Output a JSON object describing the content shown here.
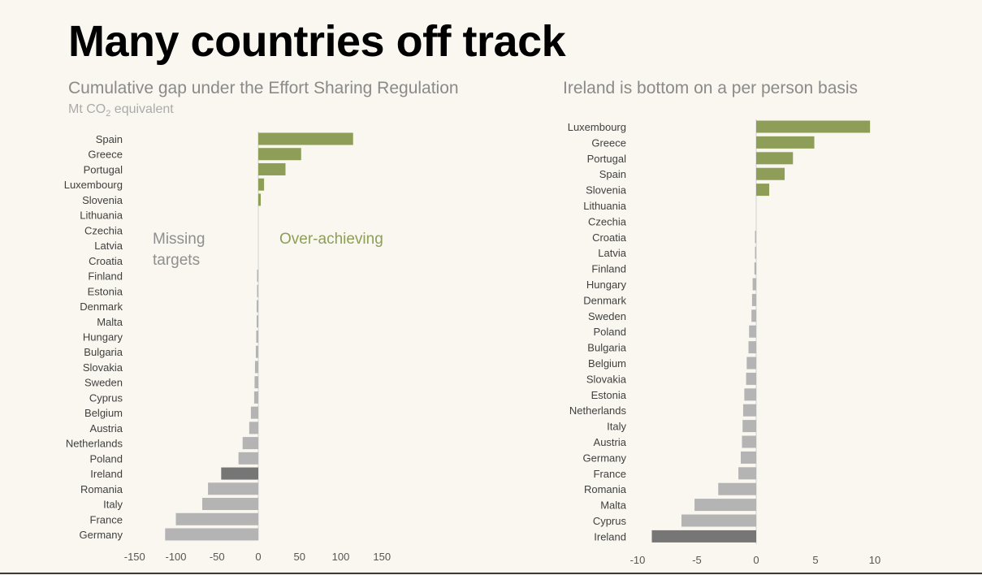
{
  "title": "Many countries off track",
  "unit": {
    "prefix": "Mt CO",
    "subscript": "2",
    "suffix": " equivalent"
  },
  "annotations": {
    "missing": "Missing targets",
    "over": "Over-achieving"
  },
  "colors": {
    "positive": "#8e9e58",
    "negative": "#b4b4b4",
    "highlight": "#767676",
    "axis": "#d0d0d0",
    "label": "#404040",
    "tick": "#555555",
    "background": "#f9f7ef"
  },
  "chart_data": [
    {
      "type": "bar",
      "orientation": "horizontal",
      "title": "Cumulative gap under the Effort Sharing Regulation",
      "xlabel": "",
      "ylabel": "",
      "xlim": [
        -150,
        150
      ],
      "xticks": [
        -150,
        -100,
        -50,
        0,
        50,
        100,
        150
      ],
      "highlight": "Ireland",
      "categories": [
        "Spain",
        "Greece",
        "Portugal",
        "Luxembourg",
        "Slovenia",
        "Lithuania",
        "Czechia",
        "Latvia",
        "Croatia",
        "Finland",
        "Estonia",
        "Denmark",
        "Malta",
        "Hungary",
        "Bulgaria",
        "Slovakia",
        "Sweden",
        "Cyprus",
        "Belgium",
        "Austria",
        "Netherlands",
        "Poland",
        "Ireland",
        "Romania",
        "Italy",
        "France",
        "Germany"
      ],
      "values": [
        115,
        52,
        33,
        7,
        3,
        0,
        0,
        0,
        0,
        -1,
        -1.5,
        -2,
        -2,
        -2.5,
        -3,
        -4,
        -4.5,
        -5,
        -9,
        -11,
        -19,
        -24,
        -45,
        -61,
        -68,
        -100,
        -113
      ]
    },
    {
      "type": "bar",
      "orientation": "horizontal",
      "title": "Ireland is bottom on a per person basis",
      "xlabel": "",
      "ylabel": "",
      "xlim": [
        -10,
        10
      ],
      "xticks": [
        -10,
        -5,
        0,
        5,
        10
      ],
      "highlight": "Ireland",
      "categories": [
        "Luxembourg",
        "Greece",
        "Portugal",
        "Spain",
        "Slovenia",
        "Lithuania",
        "Czechia",
        "Croatia",
        "Latvia",
        "Finland",
        "Hungary",
        "Denmark",
        "Sweden",
        "Poland",
        "Bulgaria",
        "Belgium",
        "Slovakia",
        "Estonia",
        "Netherlands",
        "Italy",
        "Austria",
        "Germany",
        "France",
        "Romania",
        "Malta",
        "Cyprus",
        "Ireland"
      ],
      "values": [
        9.6,
        4.9,
        3.1,
        2.4,
        1.1,
        0,
        0,
        -0.05,
        -0.1,
        -0.15,
        -0.3,
        -0.35,
        -0.4,
        -0.6,
        -0.65,
        -0.8,
        -0.85,
        -1.0,
        -1.1,
        -1.15,
        -1.2,
        -1.3,
        -1.5,
        -3.2,
        -5.2,
        -6.3,
        -8.8
      ]
    }
  ]
}
